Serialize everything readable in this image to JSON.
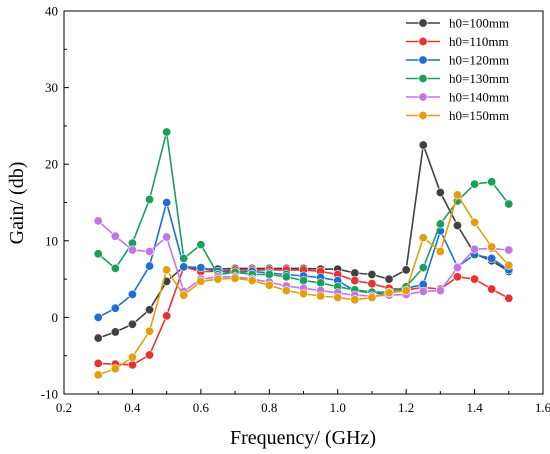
{
  "chart_data": {
    "type": "line",
    "xlabel": "Frequency/ (GHz)",
    "ylabel": "Gain/ (db)",
    "xlim": [
      0.2,
      1.6
    ],
    "ylim": [
      -10,
      40
    ],
    "xticks": [
      0.2,
      0.4,
      0.6,
      0.8,
      1.0,
      1.2,
      1.4,
      1.6
    ],
    "xtick_labels": [
      "0.2",
      "0.4",
      "0.6",
      "0.8",
      "1.0",
      "1.2",
      "1.4",
      "1.6"
    ],
    "yticks": [
      -10,
      0,
      10,
      20,
      30,
      40
    ],
    "ytick_labels": [
      "-10",
      "0",
      "10",
      "20",
      "30",
      "40"
    ],
    "grid": false,
    "legend_position": "top-right",
    "x": [
      0.3,
      0.35,
      0.4,
      0.45,
      0.5,
      0.55,
      0.6,
      0.65,
      0.7,
      0.75,
      0.8,
      0.85,
      0.9,
      0.95,
      1.0,
      1.05,
      1.1,
      1.15,
      1.2,
      1.25,
      1.3,
      1.35,
      1.4,
      1.45,
      1.5
    ],
    "series": [
      {
        "name": "h0=100mm",
        "color": "#404040",
        "values": [
          -2.7,
          -1.9,
          -0.9,
          1.0,
          4.7,
          6.6,
          6.3,
          6.3,
          6.4,
          6.4,
          6.4,
          6.4,
          6.4,
          6.3,
          6.3,
          5.8,
          5.6,
          5.0,
          6.2,
          22.5,
          16.3,
          12.0,
          8.3,
          7.4,
          6.0
        ]
      },
      {
        "name": "h0=110mm",
        "color": "#e8322f",
        "values": [
          -6.0,
          -6.1,
          -6.2,
          -4.9,
          0.2,
          6.6,
          6.0,
          6.0,
          6.2,
          6.2,
          6.2,
          6.2,
          6.2,
          6.0,
          5.6,
          4.8,
          4.4,
          3.8,
          3.6,
          3.9,
          3.7,
          5.3,
          5.0,
          3.7,
          2.5
        ]
      },
      {
        "name": "h0=120mm",
        "color": "#1f6fd1",
        "values": [
          0.0,
          1.2,
          3.0,
          6.7,
          15.0,
          6.6,
          6.5,
          6.0,
          5.9,
          6.0,
          5.8,
          5.6,
          5.4,
          5.2,
          4.8,
          3.5,
          3.2,
          3.0,
          3.8,
          4.3,
          11.3,
          6.6,
          8.2,
          7.7,
          6.2
        ]
      },
      {
        "name": "h0=130mm",
        "color": "#1aa05a",
        "values": [
          8.3,
          6.4,
          9.7,
          15.4,
          24.2,
          7.7,
          9.5,
          5.6,
          5.9,
          5.6,
          5.6,
          5.3,
          4.8,
          4.5,
          4.0,
          3.6,
          3.3,
          3.3,
          4.0,
          6.5,
          12.2,
          15.2,
          17.4,
          17.7,
          14.8
        ]
      },
      {
        "name": "h0=140mm",
        "color": "#c176e8",
        "values": [
          12.6,
          10.6,
          8.8,
          8.6,
          10.5,
          3.4,
          5.0,
          5.3,
          5.3,
          5.0,
          4.6,
          4.1,
          3.8,
          3.5,
          3.2,
          2.9,
          2.8,
          2.9,
          3.0,
          3.4,
          3.5,
          6.5,
          8.9,
          9.0,
          8.8
        ]
      },
      {
        "name": "h0=150mm",
        "color": "#e0a010",
        "values": [
          -7.5,
          -6.7,
          -5.2,
          -1.8,
          6.2,
          2.9,
          4.7,
          5.0,
          5.1,
          4.8,
          4.2,
          3.5,
          3.1,
          2.8,
          2.6,
          2.3,
          2.6,
          3.2,
          3.5,
          10.4,
          8.6,
          16.0,
          12.4,
          9.2,
          6.8
        ]
      }
    ]
  }
}
